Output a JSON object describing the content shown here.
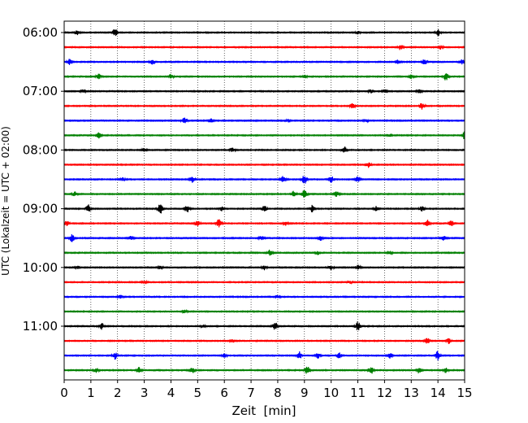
{
  "chart_data": {
    "type": "line",
    "title": "",
    "xlabel": "Zeit  [min]",
    "ylabel": "UTC (Lokalzeit = UTC + 02:00)",
    "xlim": [
      0,
      15
    ],
    "x_ticks": [
      "0",
      "1",
      "2",
      "3",
      "4",
      "5",
      "6",
      "7",
      "8",
      "9",
      "10",
      "11",
      "12",
      "13",
      "14",
      "15"
    ],
    "y_tick_labels": [
      "06:00",
      "07:00",
      "08:00",
      "09:00",
      "10:00",
      "11:00"
    ],
    "grid": "vertical dotted at each minute",
    "trace_interval_min": 15,
    "colors": [
      "#000000",
      "#ff0000",
      "#0000ff",
      "#008000"
    ],
    "traces": [
      {
        "start": "06:00",
        "color": "#000000",
        "events": [
          {
            "t": 0.5,
            "a": 0.5
          },
          {
            "t": 1.9,
            "a": 0.9
          },
          {
            "t": 11.0,
            "a": 0.3
          },
          {
            "t": 14.0,
            "a": 0.7
          }
        ]
      },
      {
        "start": "06:15",
        "color": "#ff0000",
        "events": [
          {
            "t": 12.6,
            "a": 0.6
          },
          {
            "t": 14.1,
            "a": 0.4
          }
        ]
      },
      {
        "start": "06:30",
        "color": "#0000ff",
        "events": [
          {
            "t": 0.2,
            "a": 0.6
          },
          {
            "t": 3.3,
            "a": 0.7
          },
          {
            "t": 12.5,
            "a": 0.4
          },
          {
            "t": 13.5,
            "a": 0.6
          },
          {
            "t": 14.9,
            "a": 0.5
          }
        ]
      },
      {
        "start": "06:45",
        "color": "#008000",
        "events": [
          {
            "t": 1.3,
            "a": 0.6
          },
          {
            "t": 4.0,
            "a": 0.5
          },
          {
            "t": 9.0,
            "a": 0.3
          },
          {
            "t": 13.0,
            "a": 0.4
          },
          {
            "t": 14.3,
            "a": 0.9
          }
        ]
      },
      {
        "start": "07:00",
        "color": "#000000",
        "events": [
          {
            "t": 0.7,
            "a": 0.3
          },
          {
            "t": 11.5,
            "a": 0.4
          },
          {
            "t": 12.0,
            "a": 0.4
          },
          {
            "t": 13.3,
            "a": 0.5
          }
        ]
      },
      {
        "start": "07:15",
        "color": "#ff0000",
        "events": [
          {
            "t": 10.8,
            "a": 0.5
          },
          {
            "t": 13.4,
            "a": 0.7
          }
        ]
      },
      {
        "start": "07:30",
        "color": "#0000ff",
        "events": [
          {
            "t": 4.5,
            "a": 0.9
          },
          {
            "t": 5.5,
            "a": 0.4
          },
          {
            "t": 8.4,
            "a": 0.3
          },
          {
            "t": 11.3,
            "a": 0.3
          }
        ]
      },
      {
        "start": "07:45",
        "color": "#008000",
        "events": [
          {
            "t": 1.3,
            "a": 0.6
          },
          {
            "t": 12.2,
            "a": 0.3
          },
          {
            "t": 15.0,
            "a": 0.9
          }
        ]
      },
      {
        "start": "08:00",
        "color": "#000000",
        "events": [
          {
            "t": 3.0,
            "a": 0.4
          },
          {
            "t": 6.3,
            "a": 0.4
          },
          {
            "t": 10.5,
            "a": 0.8
          }
        ]
      },
      {
        "start": "08:15",
        "color": "#ff0000",
        "events": [
          {
            "t": 11.4,
            "a": 0.6
          }
        ]
      },
      {
        "start": "08:30",
        "color": "#0000ff",
        "events": [
          {
            "t": 2.2,
            "a": 0.4
          },
          {
            "t": 4.8,
            "a": 0.7
          },
          {
            "t": 8.2,
            "a": 0.7
          },
          {
            "t": 9.0,
            "a": 1.0
          },
          {
            "t": 10.0,
            "a": 0.8
          },
          {
            "t": 11.0,
            "a": 0.6
          }
        ]
      },
      {
        "start": "08:45",
        "color": "#008000",
        "events": [
          {
            "t": 0.4,
            "a": 0.5
          },
          {
            "t": 8.6,
            "a": 0.6
          },
          {
            "t": 9.0,
            "a": 1.1
          },
          {
            "t": 10.2,
            "a": 0.6
          }
        ]
      },
      {
        "start": "09:00",
        "color": "#000000",
        "events": [
          {
            "t": 0.9,
            "a": 0.9
          },
          {
            "t": 3.6,
            "a": 1.2
          },
          {
            "t": 4.6,
            "a": 0.8
          },
          {
            "t": 5.9,
            "a": 0.5
          },
          {
            "t": 7.5,
            "a": 0.7
          },
          {
            "t": 9.3,
            "a": 0.8
          },
          {
            "t": 11.7,
            "a": 0.6
          },
          {
            "t": 13.4,
            "a": 0.6
          }
        ]
      },
      {
        "start": "09:15",
        "color": "#ff0000",
        "events": [
          {
            "t": 0.1,
            "a": 0.6
          },
          {
            "t": 5.0,
            "a": 0.6
          },
          {
            "t": 5.8,
            "a": 1.0
          },
          {
            "t": 8.3,
            "a": 0.4
          },
          {
            "t": 13.6,
            "a": 0.8
          },
          {
            "t": 14.5,
            "a": 0.6
          }
        ]
      },
      {
        "start": "09:30",
        "color": "#0000ff",
        "events": [
          {
            "t": 0.3,
            "a": 0.9
          },
          {
            "t": 2.5,
            "a": 0.4
          },
          {
            "t": 7.4,
            "a": 0.5
          },
          {
            "t": 9.6,
            "a": 0.5
          },
          {
            "t": 14.2,
            "a": 0.6
          }
        ]
      },
      {
        "start": "09:45",
        "color": "#008000",
        "events": [
          {
            "t": 7.7,
            "a": 0.6
          },
          {
            "t": 9.5,
            "a": 0.4
          },
          {
            "t": 12.2,
            "a": 0.3
          }
        ]
      },
      {
        "start": "10:00",
        "color": "#000000",
        "events": [
          {
            "t": 0.5,
            "a": 0.3
          },
          {
            "t": 3.6,
            "a": 0.3
          },
          {
            "t": 7.5,
            "a": 0.5
          },
          {
            "t": 10.0,
            "a": 0.5
          },
          {
            "t": 11.0,
            "a": 0.5
          }
        ]
      },
      {
        "start": "10:15",
        "color": "#ff0000",
        "events": [
          {
            "t": 3.0,
            "a": 0.3
          },
          {
            "t": 10.7,
            "a": 0.3
          }
        ]
      },
      {
        "start": "10:30",
        "color": "#0000ff",
        "events": [
          {
            "t": 2.1,
            "a": 0.4
          },
          {
            "t": 8.0,
            "a": 0.3
          }
        ]
      },
      {
        "start": "10:45",
        "color": "#008000",
        "events": [
          {
            "t": 4.5,
            "a": 0.3
          }
        ]
      },
      {
        "start": "11:00",
        "color": "#000000",
        "events": [
          {
            "t": 1.4,
            "a": 0.7
          },
          {
            "t": 5.2,
            "a": 0.3
          },
          {
            "t": 7.9,
            "a": 0.9
          },
          {
            "t": 11.0,
            "a": 1.0
          }
        ]
      },
      {
        "start": "11:15",
        "color": "#ff0000",
        "events": [
          {
            "t": 6.3,
            "a": 0.3
          },
          {
            "t": 13.6,
            "a": 0.7
          },
          {
            "t": 14.4,
            "a": 0.6
          }
        ]
      },
      {
        "start": "11:30",
        "color": "#0000ff",
        "events": [
          {
            "t": 1.9,
            "a": 0.8
          },
          {
            "t": 6.0,
            "a": 0.4
          },
          {
            "t": 8.8,
            "a": 0.9
          },
          {
            "t": 9.5,
            "a": 0.6
          },
          {
            "t": 10.3,
            "a": 0.6
          },
          {
            "t": 12.2,
            "a": 0.7
          },
          {
            "t": 14.0,
            "a": 1.1
          }
        ]
      },
      {
        "start": "11:45",
        "color": "#008000",
        "events": [
          {
            "t": 1.2,
            "a": 0.5
          },
          {
            "t": 2.8,
            "a": 0.6
          },
          {
            "t": 4.8,
            "a": 0.6
          },
          {
            "t": 9.1,
            "a": 0.9
          },
          {
            "t": 11.5,
            "a": 0.8
          },
          {
            "t": 13.3,
            "a": 0.7
          },
          {
            "t": 14.3,
            "a": 0.6
          }
        ]
      }
    ]
  }
}
